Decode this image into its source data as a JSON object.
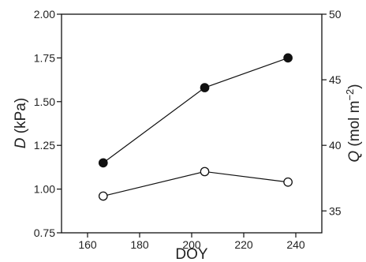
{
  "chart_data": {
    "type": "line",
    "xlabel": "DOY",
    "ylabel_left": {
      "symbol": "D",
      "unit": " (kPa)"
    },
    "ylabel_right": {
      "symbol": "Q",
      "unit_prefix": " (mol m",
      "unit_superscript": "−2",
      "unit_suffix": ")"
    },
    "xlim": [
      150,
      250
    ],
    "ylim_left": [
      0.75,
      2.0
    ],
    "ylim_right": [
      33.33,
      50
    ],
    "x_ticks": [
      160,
      180,
      200,
      220,
      240
    ],
    "x_tick_labels": [
      "160",
      "180",
      "200",
      "220",
      "240"
    ],
    "y_left_ticks": [
      0.75,
      1.0,
      1.25,
      1.5,
      1.75,
      2.0
    ],
    "y_left_tick_labels": [
      "0.75",
      "1.00",
      "1.25",
      "1.50",
      "1.75",
      "2.00"
    ],
    "y_right_ticks": [
      35,
      40,
      45,
      50
    ],
    "y_right_tick_labels": [
      "35",
      "40",
      "45",
      "50"
    ],
    "grid": false,
    "series": [
      {
        "marker": "filled-circle",
        "axis": "left",
        "color": "#111111",
        "x": [
          166,
          205,
          237
        ],
        "y": [
          1.15,
          1.58,
          1.75
        ]
      },
      {
        "marker": "open-circle",
        "axis": "left",
        "color": "#111111",
        "x": [
          166,
          205,
          237
        ],
        "y": [
          0.96,
          1.1,
          1.04
        ]
      }
    ]
  }
}
